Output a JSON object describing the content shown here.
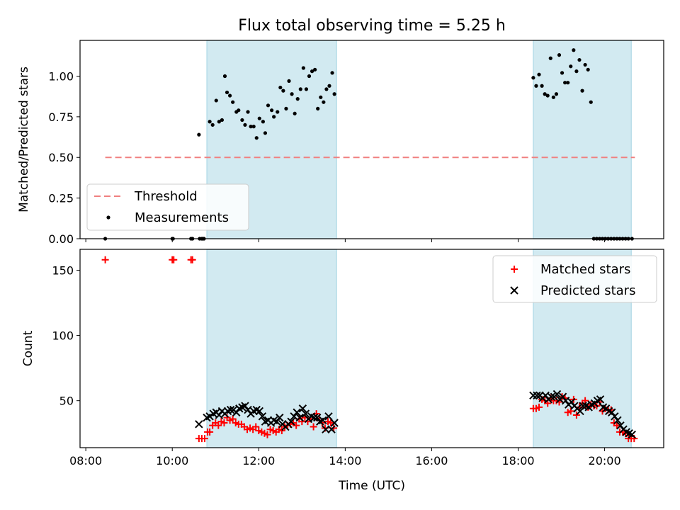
{
  "chart_data": {
    "type": "scatter",
    "title": "Flux total observing time = 5.25 h",
    "xlabel": "Time (UTC)",
    "x_ticks": [
      "08:00",
      "10:00",
      "12:00",
      "14:00",
      "16:00",
      "18:00",
      "20:00"
    ],
    "xlim": [
      "07:52",
      "21:22"
    ],
    "shaded_intervals": [
      [
        "10:48",
        "13:48"
      ],
      [
        "18:21",
        "20:37"
      ]
    ],
    "shade_color": "#add8e6",
    "panels": [
      {
        "ylabel": "Matched/Predicted stars",
        "ylim": [
          0,
          1.22
        ],
        "y_ticks": [
          "0.00",
          "0.25",
          "0.50",
          "0.75",
          "1.00"
        ],
        "legend_position": "lower-left",
        "series": [
          {
            "name": "Threshold",
            "kind": "line",
            "style": "dashed",
            "color": "#f08080",
            "x": [
              "08:27",
              "20:42"
            ],
            "y": [
              0.5,
              0.5
            ]
          },
          {
            "name": "Measurements",
            "kind": "scatter",
            "marker": "dot",
            "color": "#000000",
            "x": [
              "08:27",
              "10:00",
              "10:01",
              "10:26",
              "10:28",
              "10:37",
              "10:38",
              "10:41",
              "10:42",
              "10:44",
              "10:52",
              "10:56",
              "11:01",
              "11:05",
              "11:09",
              "11:13",
              "11:16",
              "11:20",
              "11:24",
              "11:29",
              "11:32",
              "11:37",
              "11:41",
              "11:45",
              "11:49",
              "11:53",
              "11:57",
              "12:01",
              "12:06",
              "12:09",
              "12:13",
              "12:18",
              "12:21",
              "12:26",
              "12:30",
              "12:34",
              "12:38",
              "12:42",
              "12:46",
              "12:50",
              "12:54",
              "12:58",
              "13:02",
              "13:06",
              "13:10",
              "13:14",
              "13:18",
              "13:22",
              "13:26",
              "13:30",
              "13:34",
              "13:38",
              "13:42",
              "13:45",
              "18:21",
              "18:25",
              "18:29",
              "18:33",
              "18:37",
              "18:41",
              "18:45",
              "18:49",
              "18:53",
              "18:57",
              "19:01",
              "19:05",
              "19:09",
              "19:13",
              "19:17",
              "19:21",
              "19:25",
              "19:29",
              "19:33",
              "19:37",
              "19:41",
              "19:45",
              "19:49",
              "19:53",
              "19:57",
              "20:01",
              "20:05",
              "20:09",
              "20:13",
              "20:17",
              "20:21",
              "20:25",
              "20:29",
              "20:33",
              "20:38"
            ],
            "y": [
              0,
              0,
              0,
              0,
              0,
              0.64,
              0,
              0,
              0,
              0,
              0.72,
              0.7,
              0.85,
              0.72,
              0.73,
              1.0,
              0.9,
              0.88,
              0.84,
              0.78,
              0.79,
              0.73,
              0.7,
              0.78,
              0.69,
              0.69,
              0.62,
              0.74,
              0.72,
              0.65,
              0.82,
              0.79,
              0.75,
              0.78,
              0.93,
              0.91,
              0.8,
              0.97,
              0.89,
              0.77,
              0.86,
              0.92,
              1.05,
              0.92,
              1.0,
              1.03,
              1.04,
              0.8,
              0.87,
              0.84,
              0.92,
              0.94,
              1.02,
              0.89,
              0.99,
              0.94,
              1.01,
              0.94,
              0.89,
              0.88,
              1.11,
              0.87,
              0.89,
              1.13,
              1.02,
              0.96,
              0.96,
              1.06,
              1.16,
              1.03,
              1.1,
              0.91,
              1.07,
              1.04,
              0.84,
              0,
              0,
              0,
              0,
              0,
              0,
              0,
              0,
              0,
              0,
              0,
              0,
              0,
              0.0
            ]
          }
        ]
      },
      {
        "ylabel": "Count",
        "ylim": [
          14,
          166
        ],
        "y_ticks": [
          "50",
          "100",
          "150"
        ],
        "legend_position": "upper-right",
        "series": [
          {
            "name": "Matched stars",
            "kind": "scatter",
            "marker": "plus",
            "color": "#ff0000",
            "x": [
              "08:27",
              "10:00",
              "10:02",
              "10:26",
              "10:28",
              "10:37",
              "10:41",
              "10:45",
              "10:49",
              "10:52",
              "10:56",
              "11:00",
              "11:04",
              "11:08",
              "11:12",
              "11:16",
              "11:20",
              "11:24",
              "11:28",
              "11:32",
              "11:36",
              "11:40",
              "11:44",
              "11:48",
              "11:52",
              "11:56",
              "12:00",
              "12:04",
              "12:08",
              "12:12",
              "12:16",
              "12:20",
              "12:24",
              "12:28",
              "12:32",
              "12:36",
              "12:40",
              "12:44",
              "12:48",
              "12:52",
              "12:56",
              "13:00",
              "13:04",
              "13:08",
              "13:12",
              "13:16",
              "13:20",
              "13:24",
              "13:28",
              "13:32",
              "13:36",
              "13:40",
              "13:44",
              "18:21",
              "18:25",
              "18:29",
              "18:33",
              "18:37",
              "18:41",
              "18:45",
              "18:49",
              "18:53",
              "18:57",
              "19:01",
              "19:05",
              "19:09",
              "19:13",
              "19:17",
              "19:21",
              "19:25",
              "19:29",
              "19:33",
              "19:37",
              "19:41",
              "19:45",
              "19:49",
              "19:53",
              "19:57",
              "20:01",
              "20:05",
              "20:09",
              "20:13",
              "20:17",
              "20:21",
              "20:25",
              "20:29",
              "20:33",
              "20:37",
              "20:41"
            ],
            "y": [
              158,
              158,
              158,
              158,
              158,
              21,
              21,
              21,
              26,
              26,
              31,
              33,
              31,
              34,
              33,
              37,
              35,
              36,
              33,
              32,
              32,
              30,
              28,
              29,
              28,
              30,
              27,
              26,
              25,
              24,
              28,
              27,
              26,
              28,
              27,
              30,
              31,
              32,
              33,
              31,
              36,
              34,
              37,
              34,
              36,
              30,
              40,
              35,
              33,
              29,
              34,
              33,
              29,
              44,
              44,
              45,
              51,
              50,
              48,
              52,
              50,
              50,
              49,
              53,
              52,
              41,
              42,
              51,
              39,
              45,
              48,
              50,
              45,
              47,
              46,
              46,
              49,
              42,
              44,
              43,
              43,
              33,
              31,
              26,
              26,
              25,
              21,
              21,
              21
            ]
          },
          {
            "name": "Predicted stars",
            "kind": "scatter",
            "marker": "x",
            "color": "#000000",
            "x": [
              "10:37",
              "10:48",
              "10:52",
              "10:57",
              "11:01",
              "11:05",
              "11:09",
              "11:13",
              "11:17",
              "11:21",
              "11:25",
              "11:29",
              "11:33",
              "11:37",
              "11:41",
              "11:45",
              "11:49",
              "11:53",
              "11:57",
              "12:01",
              "12:05",
              "12:09",
              "12:13",
              "12:17",
              "12:21",
              "12:25",
              "12:29",
              "12:33",
              "12:37",
              "12:41",
              "12:45",
              "12:49",
              "12:53",
              "12:57",
              "13:01",
              "13:05",
              "13:09",
              "13:13",
              "13:17",
              "13:21",
              "13:25",
              "13:29",
              "13:33",
              "13:37",
              "13:41",
              "13:45",
              "18:21",
              "18:26",
              "18:30",
              "18:34",
              "18:38",
              "18:42",
              "18:46",
              "18:50",
              "18:54",
              "18:58",
              "19:02",
              "19:06",
              "19:10",
              "19:14",
              "19:18",
              "19:22",
              "19:26",
              "19:30",
              "19:34",
              "19:38",
              "19:42",
              "19:46",
              "19:50",
              "19:54",
              "19:58",
              "20:02",
              "20:06",
              "20:10",
              "20:14",
              "20:18",
              "20:22",
              "20:26",
              "20:30",
              "20:34",
              "20:38"
            ],
            "y": [
              32,
              37,
              38,
              40,
              41,
              39,
              42,
              40,
              42,
              43,
              43,
              41,
              44,
              45,
              46,
              43,
              40,
              42,
              43,
              42,
              38,
              34,
              35,
              33,
              35,
              34,
              37,
              32,
              30,
              32,
              34,
              38,
              41,
              37,
              44,
              40,
              36,
              38,
              37,
              37,
              34,
              35,
              28,
              38,
              28,
              33,
              54,
              54,
              54,
              52,
              54,
              51,
              53,
              53,
              55,
              51,
              53,
              50,
              47,
              49,
              46,
              44,
              42,
              46,
              46,
              45,
              47,
              48,
              50,
              51,
              45,
              44,
              42,
              41,
              38,
              35,
              31,
              28,
              26,
              25,
              24
            ]
          }
        ]
      }
    ]
  }
}
